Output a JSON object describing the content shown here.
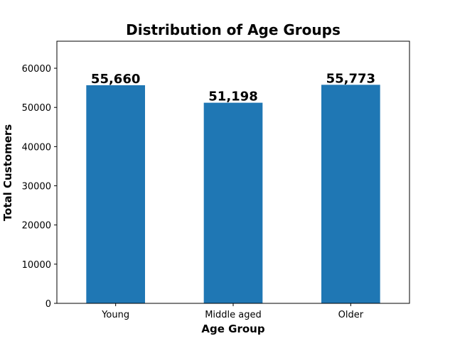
{
  "chart_data": {
    "type": "bar",
    "title": "Distribution of Age Groups",
    "xlabel": "Age Group",
    "ylabel": "Total Customers",
    "categories": [
      "Young",
      "Middle aged",
      "Older"
    ],
    "values": [
      55660,
      51198,
      55773
    ],
    "data_labels": [
      "55,660",
      "51,198",
      "55,773"
    ],
    "yticks": [
      0,
      10000,
      20000,
      30000,
      40000,
      50000,
      60000
    ],
    "ytick_labels": [
      "0",
      "10000",
      "20000",
      "30000",
      "40000",
      "50000",
      "60000"
    ],
    "ylim": [
      0,
      66900
    ],
    "grid": false,
    "bar_color": "#1f77b4"
  }
}
